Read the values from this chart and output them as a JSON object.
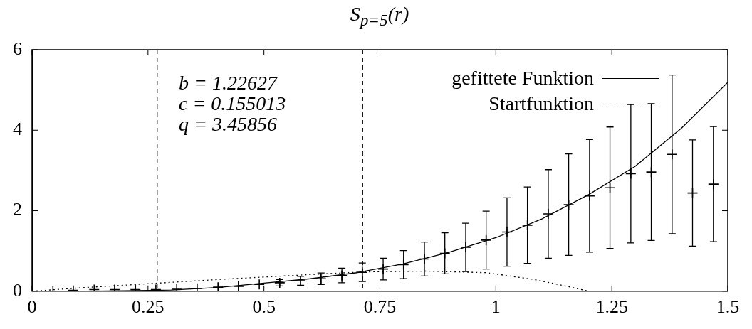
{
  "chart_data": {
    "type": "scatter",
    "title": "S$_{p=5}$(r)",
    "xlim": [
      0,
      1.5
    ],
    "xticks": [
      0,
      0.25,
      0.5,
      0.75,
      1,
      1.25,
      1.5
    ],
    "ylim": [
      0,
      6
    ],
    "yticks": [
      0,
      2,
      4,
      6
    ],
    "grid": false,
    "legend": "top right",
    "annotations": [
      "b = 1.22627",
      "c = 0.155013",
      "q = 3.45856"
    ],
    "ref_lines": [
      {
        "axis": "x",
        "value": 0.27,
        "line_style": "dashed",
        "color": "#000000"
      },
      {
        "axis": "x",
        "value": 0.713,
        "line_style": "dashed",
        "color": "#000000"
      }
    ],
    "series": [
      {
        "type": "scatter",
        "color": "#000000",
        "marker": "cross",
        "x": [
          0.045,
          0.089,
          0.134,
          0.178,
          0.223,
          0.267,
          0.312,
          0.356,
          0.401,
          0.445,
          0.49,
          0.534,
          0.579,
          0.623,
          0.668,
          0.712,
          0.757,
          0.801,
          0.846,
          0.89,
          0.935,
          0.979,
          1.024,
          1.068,
          1.113,
          1.157,
          1.202,
          1.246,
          1.291,
          1.335,
          1.38,
          1.424,
          1.469
        ],
        "values": [
          0,
          0.02,
          0.04,
          0.04,
          0.04,
          0.04,
          0.05,
          0.07,
          0.1,
          0.12,
          0.17,
          0.21,
          0.26,
          0.31,
          0.39,
          0.47,
          0.55,
          0.66,
          0.8,
          0.94,
          1.09,
          1.27,
          1.47,
          1.64,
          1.92,
          2.15,
          2.37,
          2.57,
          2.92,
          2.96,
          3.4,
          2.44,
          2.66
        ],
        "errors": [
          null,
          null,
          null,
          null,
          null,
          null,
          null,
          null,
          null,
          null,
          null,
          0.08,
          0.11,
          0.145,
          0.18,
          0.23,
          0.27,
          0.35,
          0.42,
          0.51,
          0.6,
          0.72,
          0.85,
          0.95,
          1.1,
          1.26,
          1.4,
          1.51,
          1.72,
          1.7,
          1.97,
          1.32,
          1.43
        ]
      },
      {
        "type": "line",
        "name": "gefittete Funktion",
        "color": "#000000",
        "line_style": "solid",
        "marker": "none",
        "x": [
          0,
          0.1,
          0.2,
          0.3,
          0.4,
          0.5,
          0.6,
          0.7,
          0.8,
          0.9,
          1.0,
          1.1,
          1.2,
          1.3,
          1.4,
          1.5
        ],
        "values": [
          0,
          0,
          0.01,
          0.03,
          0.09,
          0.2,
          0.31,
          0.46,
          0.68,
          0.97,
          1.33,
          1.8,
          2.4,
          3.1,
          4.05,
          5.19
        ]
      },
      {
        "type": "line",
        "name": "Startfunktion",
        "color": "#000000",
        "line_style": "dotted",
        "marker": "none",
        "x": [
          0,
          0.1,
          0.27,
          0.4,
          0.577,
          0.713,
          0.85,
          0.98,
          1.083,
          1.15,
          1.2
        ],
        "values": [
          0,
          0.08,
          0.2,
          0.29,
          0.4,
          0.48,
          0.5,
          0.46,
          0.29,
          0.13,
          0
        ]
      }
    ]
  }
}
